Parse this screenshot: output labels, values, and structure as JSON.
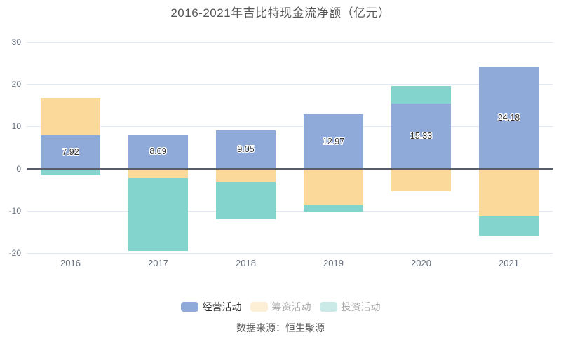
{
  "title": "2016-2021年吉比特现金流净额（亿元）",
  "source": "数据来源：恒生聚源",
  "legend": {
    "items": [
      {
        "label": "经营活动",
        "swatch_color": "#8FA9D8",
        "text_color": "#333333"
      },
      {
        "label": "筹资活动",
        "swatch_color": "#FCEFD6",
        "text_color": "#AAAAAA"
      },
      {
        "label": "投资活动",
        "swatch_color": "#C9EAE6",
        "text_color": "#AAAAAA"
      }
    ]
  },
  "chart_data": {
    "type": "bar",
    "stacked": true,
    "title": "2016-2021年吉比特现金流净额（亿元）",
    "categories": [
      "2016",
      "2017",
      "2018",
      "2019",
      "2020",
      "2021"
    ],
    "series": [
      {
        "name": "经营活动",
        "color": "#8FA9D8",
        "values": [
          7.92,
          8.09,
          9.05,
          12.97,
          15.33,
          24.18
        ],
        "labels_shown": true
      },
      {
        "name": "筹资活动",
        "color": "#FBD99B",
        "values": [
          8.74,
          -2.21,
          -3.27,
          -8.47,
          -5.32,
          -11.35
        ],
        "labels_shown": false
      },
      {
        "name": "投资活动",
        "color": "#84D4CE",
        "values": [
          -1.62,
          -17.34,
          -8.74,
          -1.66,
          4.17,
          -4.6
        ],
        "labels_shown": false
      }
    ],
    "xlabel": "",
    "ylabel": "",
    "ylim": [
      -20,
      30
    ],
    "yticks": [
      30,
      20,
      10,
      0,
      -10,
      -20
    ],
    "grid": true,
    "legend_position": "bottom",
    "zero_line": true,
    "grid_color": "#E3E9F4",
    "zero_line_color": "#565D68"
  }
}
